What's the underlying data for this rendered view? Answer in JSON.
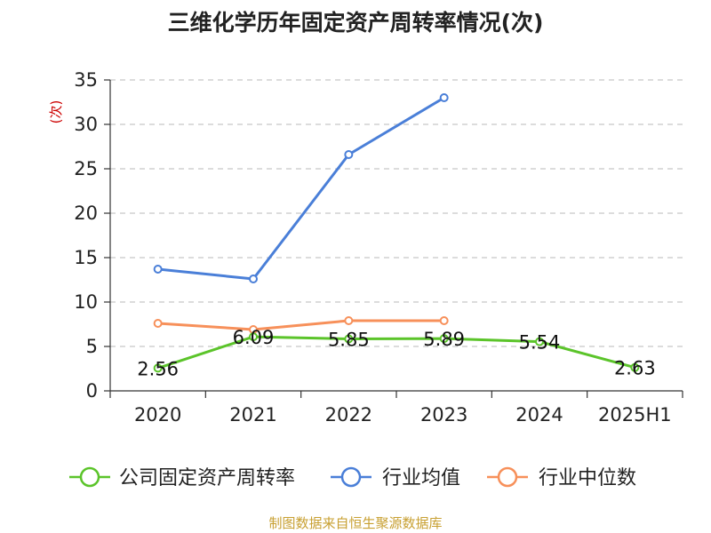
{
  "title": "三维化学历年固定资产周转率情况(次)",
  "source": "制图数据来自恒生聚源数据库",
  "chart_data": {
    "type": "line",
    "title": "三维化学历年固定资产周转率情况(次)",
    "ylabel": "(次)",
    "xlabel": "",
    "categories": [
      "2020",
      "2021",
      "2022",
      "2023",
      "2024",
      "2025H1"
    ],
    "ylim": [
      0,
      35
    ],
    "yticks": [
      0,
      5,
      10,
      15,
      20,
      25,
      30,
      35
    ],
    "ytick_labels": [
      "0",
      "5",
      "10",
      "15",
      "20",
      "25",
      "30",
      "35"
    ],
    "grid": true,
    "legend_position": "bottom",
    "series": [
      {
        "name": "公司固定资产周转率",
        "color": "#5bc42a",
        "values": [
          2.56,
          6.09,
          5.85,
          5.89,
          5.54,
          2.63
        ],
        "data_labels": [
          "2.56",
          "6.09",
          "5.85",
          "5.89",
          "5.54",
          "2.63"
        ]
      },
      {
        "name": "行业均值",
        "color": "#4a7fd8",
        "values": [
          13.7,
          12.6,
          26.6,
          33.0,
          null,
          null
        ]
      },
      {
        "name": "行业中位数",
        "color": "#f7905a",
        "values": [
          7.6,
          6.9,
          7.9,
          7.9,
          null,
          null
        ]
      }
    ]
  }
}
